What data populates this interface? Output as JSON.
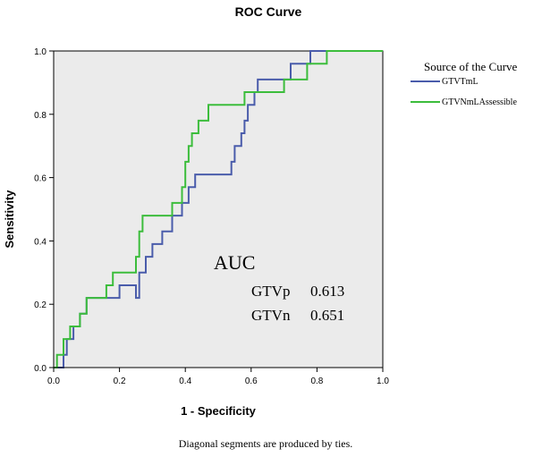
{
  "chart_data": {
    "type": "line",
    "title": "ROC Curve",
    "xlabel": "1 - Specificity",
    "ylabel": "Sensitivity",
    "xlim": [
      0.0,
      1.0
    ],
    "ylim": [
      0.0,
      1.0
    ],
    "x_ticks": [
      {
        "value": 0.0,
        "label": "0.0"
      },
      {
        "value": 0.2,
        "label": "0.2"
      },
      {
        "value": 0.4,
        "label": "0.4"
      },
      {
        "value": 0.6,
        "label": "0.6"
      },
      {
        "value": 0.8,
        "label": "0.8"
      },
      {
        "value": 1.0,
        "label": "1.0"
      }
    ],
    "y_ticks": [
      {
        "value": 0.0,
        "label": "0.0"
      },
      {
        "value": 0.2,
        "label": "0.2"
      },
      {
        "value": 0.4,
        "label": "0.4"
      },
      {
        "value": 0.6,
        "label": "0.6"
      },
      {
        "value": 0.8,
        "label": "0.8"
      },
      {
        "value": 1.0,
        "label": "1.0"
      }
    ],
    "grid": false,
    "legend": {
      "title": "Source of the Curve",
      "placement": "top-right-outside",
      "entries": [
        "GTVTmL",
        "GTVNmLAssessible"
      ]
    },
    "series": [
      {
        "name": "GTVTmL",
        "color": "#4a5cab",
        "points": [
          [
            0.0,
            0.0
          ],
          [
            0.03,
            0.0
          ],
          [
            0.03,
            0.04
          ],
          [
            0.04,
            0.04
          ],
          [
            0.04,
            0.09
          ],
          [
            0.06,
            0.09
          ],
          [
            0.06,
            0.13
          ],
          [
            0.08,
            0.13
          ],
          [
            0.08,
            0.17
          ],
          [
            0.1,
            0.17
          ],
          [
            0.1,
            0.22
          ],
          [
            0.2,
            0.22
          ],
          [
            0.2,
            0.26
          ],
          [
            0.25,
            0.26
          ],
          [
            0.25,
            0.22
          ],
          [
            0.26,
            0.22
          ],
          [
            0.26,
            0.3
          ],
          [
            0.28,
            0.3
          ],
          [
            0.28,
            0.35
          ],
          [
            0.3,
            0.35
          ],
          [
            0.3,
            0.39
          ],
          [
            0.33,
            0.39
          ],
          [
            0.33,
            0.43
          ],
          [
            0.36,
            0.43
          ],
          [
            0.36,
            0.48
          ],
          [
            0.39,
            0.48
          ],
          [
            0.39,
            0.52
          ],
          [
            0.41,
            0.52
          ],
          [
            0.41,
            0.57
          ],
          [
            0.43,
            0.57
          ],
          [
            0.43,
            0.61
          ],
          [
            0.54,
            0.61
          ],
          [
            0.54,
            0.65
          ],
          [
            0.55,
            0.65
          ],
          [
            0.55,
            0.7
          ],
          [
            0.57,
            0.7
          ],
          [
            0.57,
            0.74
          ],
          [
            0.58,
            0.74
          ],
          [
            0.58,
            0.78
          ],
          [
            0.59,
            0.78
          ],
          [
            0.59,
            0.83
          ],
          [
            0.61,
            0.83
          ],
          [
            0.61,
            0.87
          ],
          [
            0.62,
            0.87
          ],
          [
            0.62,
            0.91
          ],
          [
            0.72,
            0.91
          ],
          [
            0.72,
            0.96
          ],
          [
            0.78,
            0.96
          ],
          [
            0.78,
            1.0
          ],
          [
            1.0,
            1.0
          ]
        ]
      },
      {
        "name": "GTVNmLAssessible",
        "color": "#3cbd3c",
        "points": [
          [
            0.0,
            0.0
          ],
          [
            0.01,
            0.0
          ],
          [
            0.01,
            0.04
          ],
          [
            0.03,
            0.04
          ],
          [
            0.03,
            0.09
          ],
          [
            0.05,
            0.09
          ],
          [
            0.05,
            0.13
          ],
          [
            0.08,
            0.13
          ],
          [
            0.08,
            0.17
          ],
          [
            0.1,
            0.17
          ],
          [
            0.1,
            0.22
          ],
          [
            0.16,
            0.22
          ],
          [
            0.16,
            0.26
          ],
          [
            0.18,
            0.26
          ],
          [
            0.18,
            0.3
          ],
          [
            0.25,
            0.3
          ],
          [
            0.25,
            0.35
          ],
          [
            0.26,
            0.35
          ],
          [
            0.26,
            0.43
          ],
          [
            0.27,
            0.43
          ],
          [
            0.27,
            0.48
          ],
          [
            0.36,
            0.48
          ],
          [
            0.36,
            0.52
          ],
          [
            0.39,
            0.52
          ],
          [
            0.39,
            0.57
          ],
          [
            0.4,
            0.57
          ],
          [
            0.4,
            0.65
          ],
          [
            0.41,
            0.65
          ],
          [
            0.41,
            0.7
          ],
          [
            0.42,
            0.7
          ],
          [
            0.42,
            0.74
          ],
          [
            0.44,
            0.74
          ],
          [
            0.44,
            0.78
          ],
          [
            0.47,
            0.78
          ],
          [
            0.47,
            0.83
          ],
          [
            0.58,
            0.83
          ],
          [
            0.58,
            0.87
          ],
          [
            0.7,
            0.87
          ],
          [
            0.7,
            0.91
          ],
          [
            0.77,
            0.91
          ],
          [
            0.77,
            0.96
          ],
          [
            0.83,
            0.96
          ],
          [
            0.83,
            1.0
          ],
          [
            1.0,
            1.0
          ]
        ]
      }
    ],
    "annotations": {
      "auc_title": "AUC",
      "rows": [
        {
          "label": "GTVp",
          "value": "0.613"
        },
        {
          "label": "GTVn",
          "value": "0.651"
        }
      ]
    },
    "footnote": "Diagonal segments are produced by ties."
  },
  "colors": {
    "plot_background": "#ebebeb",
    "axis": "#000000"
  }
}
